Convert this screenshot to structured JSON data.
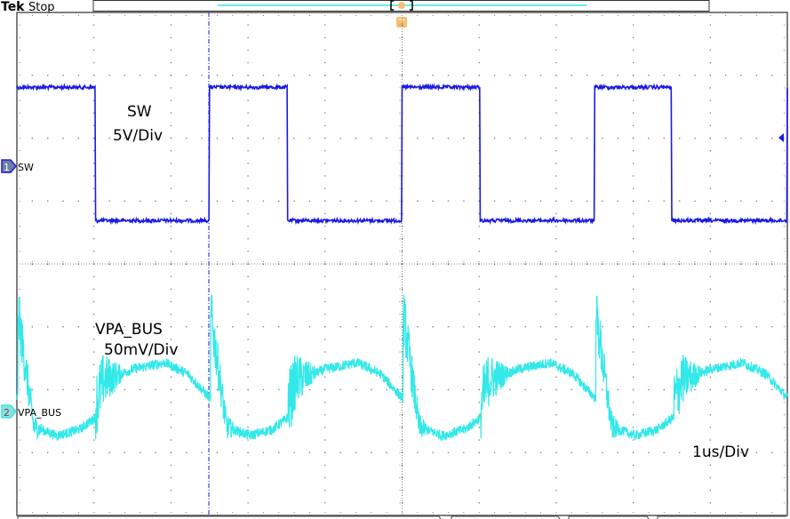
{
  "header": {
    "brand": "Tek",
    "status": "Stop"
  },
  "colors": {
    "ch1": "#1a1ae6",
    "ch2": "#33e8e8",
    "trigger": "#f7c070",
    "graticule": "#555555"
  },
  "chart_data": {
    "type": "line",
    "title": "",
    "x_unit": "us",
    "time_per_div": 1,
    "xlim": [
      0,
      10
    ],
    "grid": true,
    "divisions": {
      "horizontal": 10,
      "vertical": 8
    },
    "channels": [
      {
        "id": "1",
        "label": "SW",
        "annotation": "SW",
        "scale_label": "5V/Div",
        "volts_per_div": 5,
        "unit": "V",
        "offset_div": 1.55,
        "high_level": 6.3,
        "low_level": -4.3,
        "rising_edges": [
          0,
          2.5,
          5.0,
          7.5,
          10.0
        ],
        "falling_edges": [
          1.02,
          3.51,
          6.01,
          8.5
        ]
      },
      {
        "id": "2",
        "label": "VPA_BUS",
        "annotation": "VPA_BUS",
        "scale_label": "50mV/Div",
        "volts_per_div": 50,
        "unit": "mV",
        "offset_div": -2.35,
        "period": 2.5,
        "ripple_points": [
          {
            "t": 0.0,
            "v": 5
          },
          {
            "t": 0.1,
            "v": 25
          },
          {
            "t": 0.5,
            "v": 34
          },
          {
            "t": 0.9,
            "v": 39
          },
          {
            "t": 1.2,
            "v": 30
          },
          {
            "t": 1.48,
            "v": 11
          },
          {
            "t": 1.5,
            "v": 76
          },
          {
            "t": 1.7,
            "v": -12
          },
          {
            "t": 2.0,
            "v": -19
          },
          {
            "t": 2.3,
            "v": -14
          },
          {
            "t": 2.49,
            "v": -5
          }
        ],
        "first_period_start": -1.48
      }
    ],
    "timebase_label": "1us/Div",
    "cursor_time": 2.5,
    "trigger_time": 5.0
  }
}
